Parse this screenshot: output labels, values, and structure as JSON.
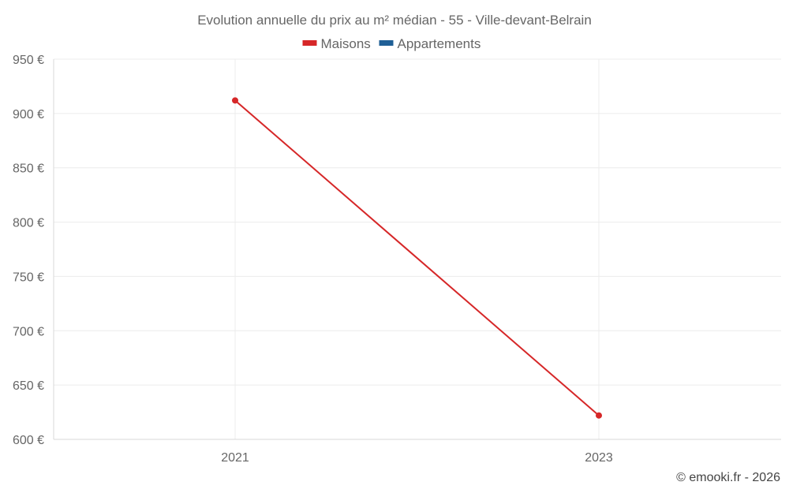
{
  "chart_data": {
    "type": "line",
    "title": "Evolution annuelle du prix au m² médian - 55 - Ville-devant-Belrain",
    "x": [
      "2021",
      "2023"
    ],
    "ylim": [
      600,
      950
    ],
    "yticks": [
      600,
      650,
      700,
      750,
      800,
      850,
      900,
      950
    ],
    "y_unit_suffix": " €",
    "grid": true,
    "legend_position": "top-center",
    "series": [
      {
        "name": "Maisons",
        "color": "#d62728",
        "values": [
          912,
          622
        ]
      },
      {
        "name": "Appartements",
        "color": "#1f5f96",
        "values": [
          null,
          null
        ]
      }
    ]
  },
  "credit": "© emooki.fr - 2026"
}
